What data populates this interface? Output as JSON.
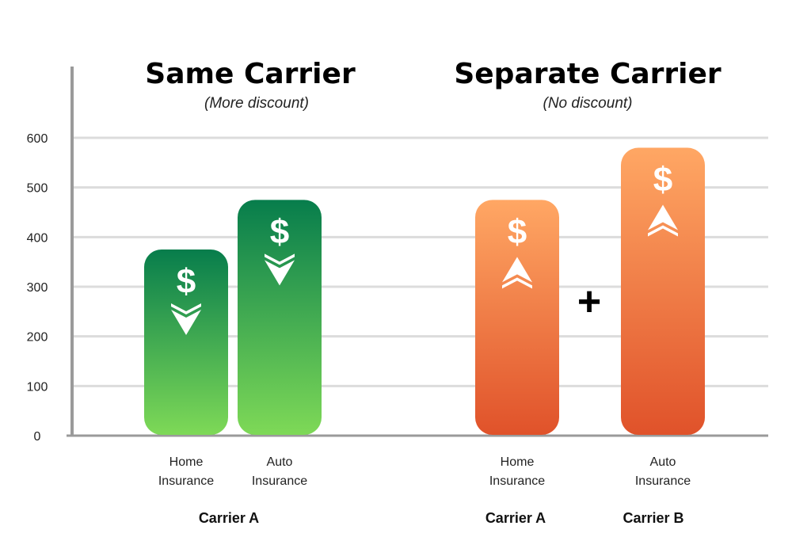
{
  "chart_data": {
    "type": "bar",
    "panels": [
      {
        "title": "Same Carrier",
        "subtitle": "(More discount)"
      },
      {
        "title": "Separate Carrier",
        "subtitle": "(No discount)"
      }
    ],
    "bars": [
      {
        "label": [
          "Home",
          "Insurance"
        ],
        "value": 375,
        "panel": 0,
        "trend": "down",
        "color_top": "#077d4c",
        "color_bottom": "#7ed957"
      },
      {
        "label": [
          "Auto",
          "Insurance"
        ],
        "value": 475,
        "panel": 0,
        "trend": "down",
        "color_top": "#077d4c",
        "color_bottom": "#7ed957"
      },
      {
        "label": [
          "Home",
          "Insurance"
        ],
        "value": 475,
        "panel": 1,
        "trend": "up",
        "color_top": "#ffa764",
        "color_bottom": "#e0522a"
      },
      {
        "label": [
          "Auto",
          "Insurance"
        ],
        "value": 580,
        "panel": 1,
        "trend": "up",
        "color_top": "#ffa764",
        "color_bottom": "#e0522a"
      }
    ],
    "groups": [
      "Carrier A",
      "Carrier A",
      "Carrier B"
    ],
    "plus_sign": "+",
    "bar_symbol": "$",
    "yticks": [
      0,
      100,
      200,
      300,
      400,
      500,
      600
    ],
    "ylim": [
      0,
      600
    ],
    "grid": true,
    "xlabel": "",
    "ylabel": ""
  }
}
